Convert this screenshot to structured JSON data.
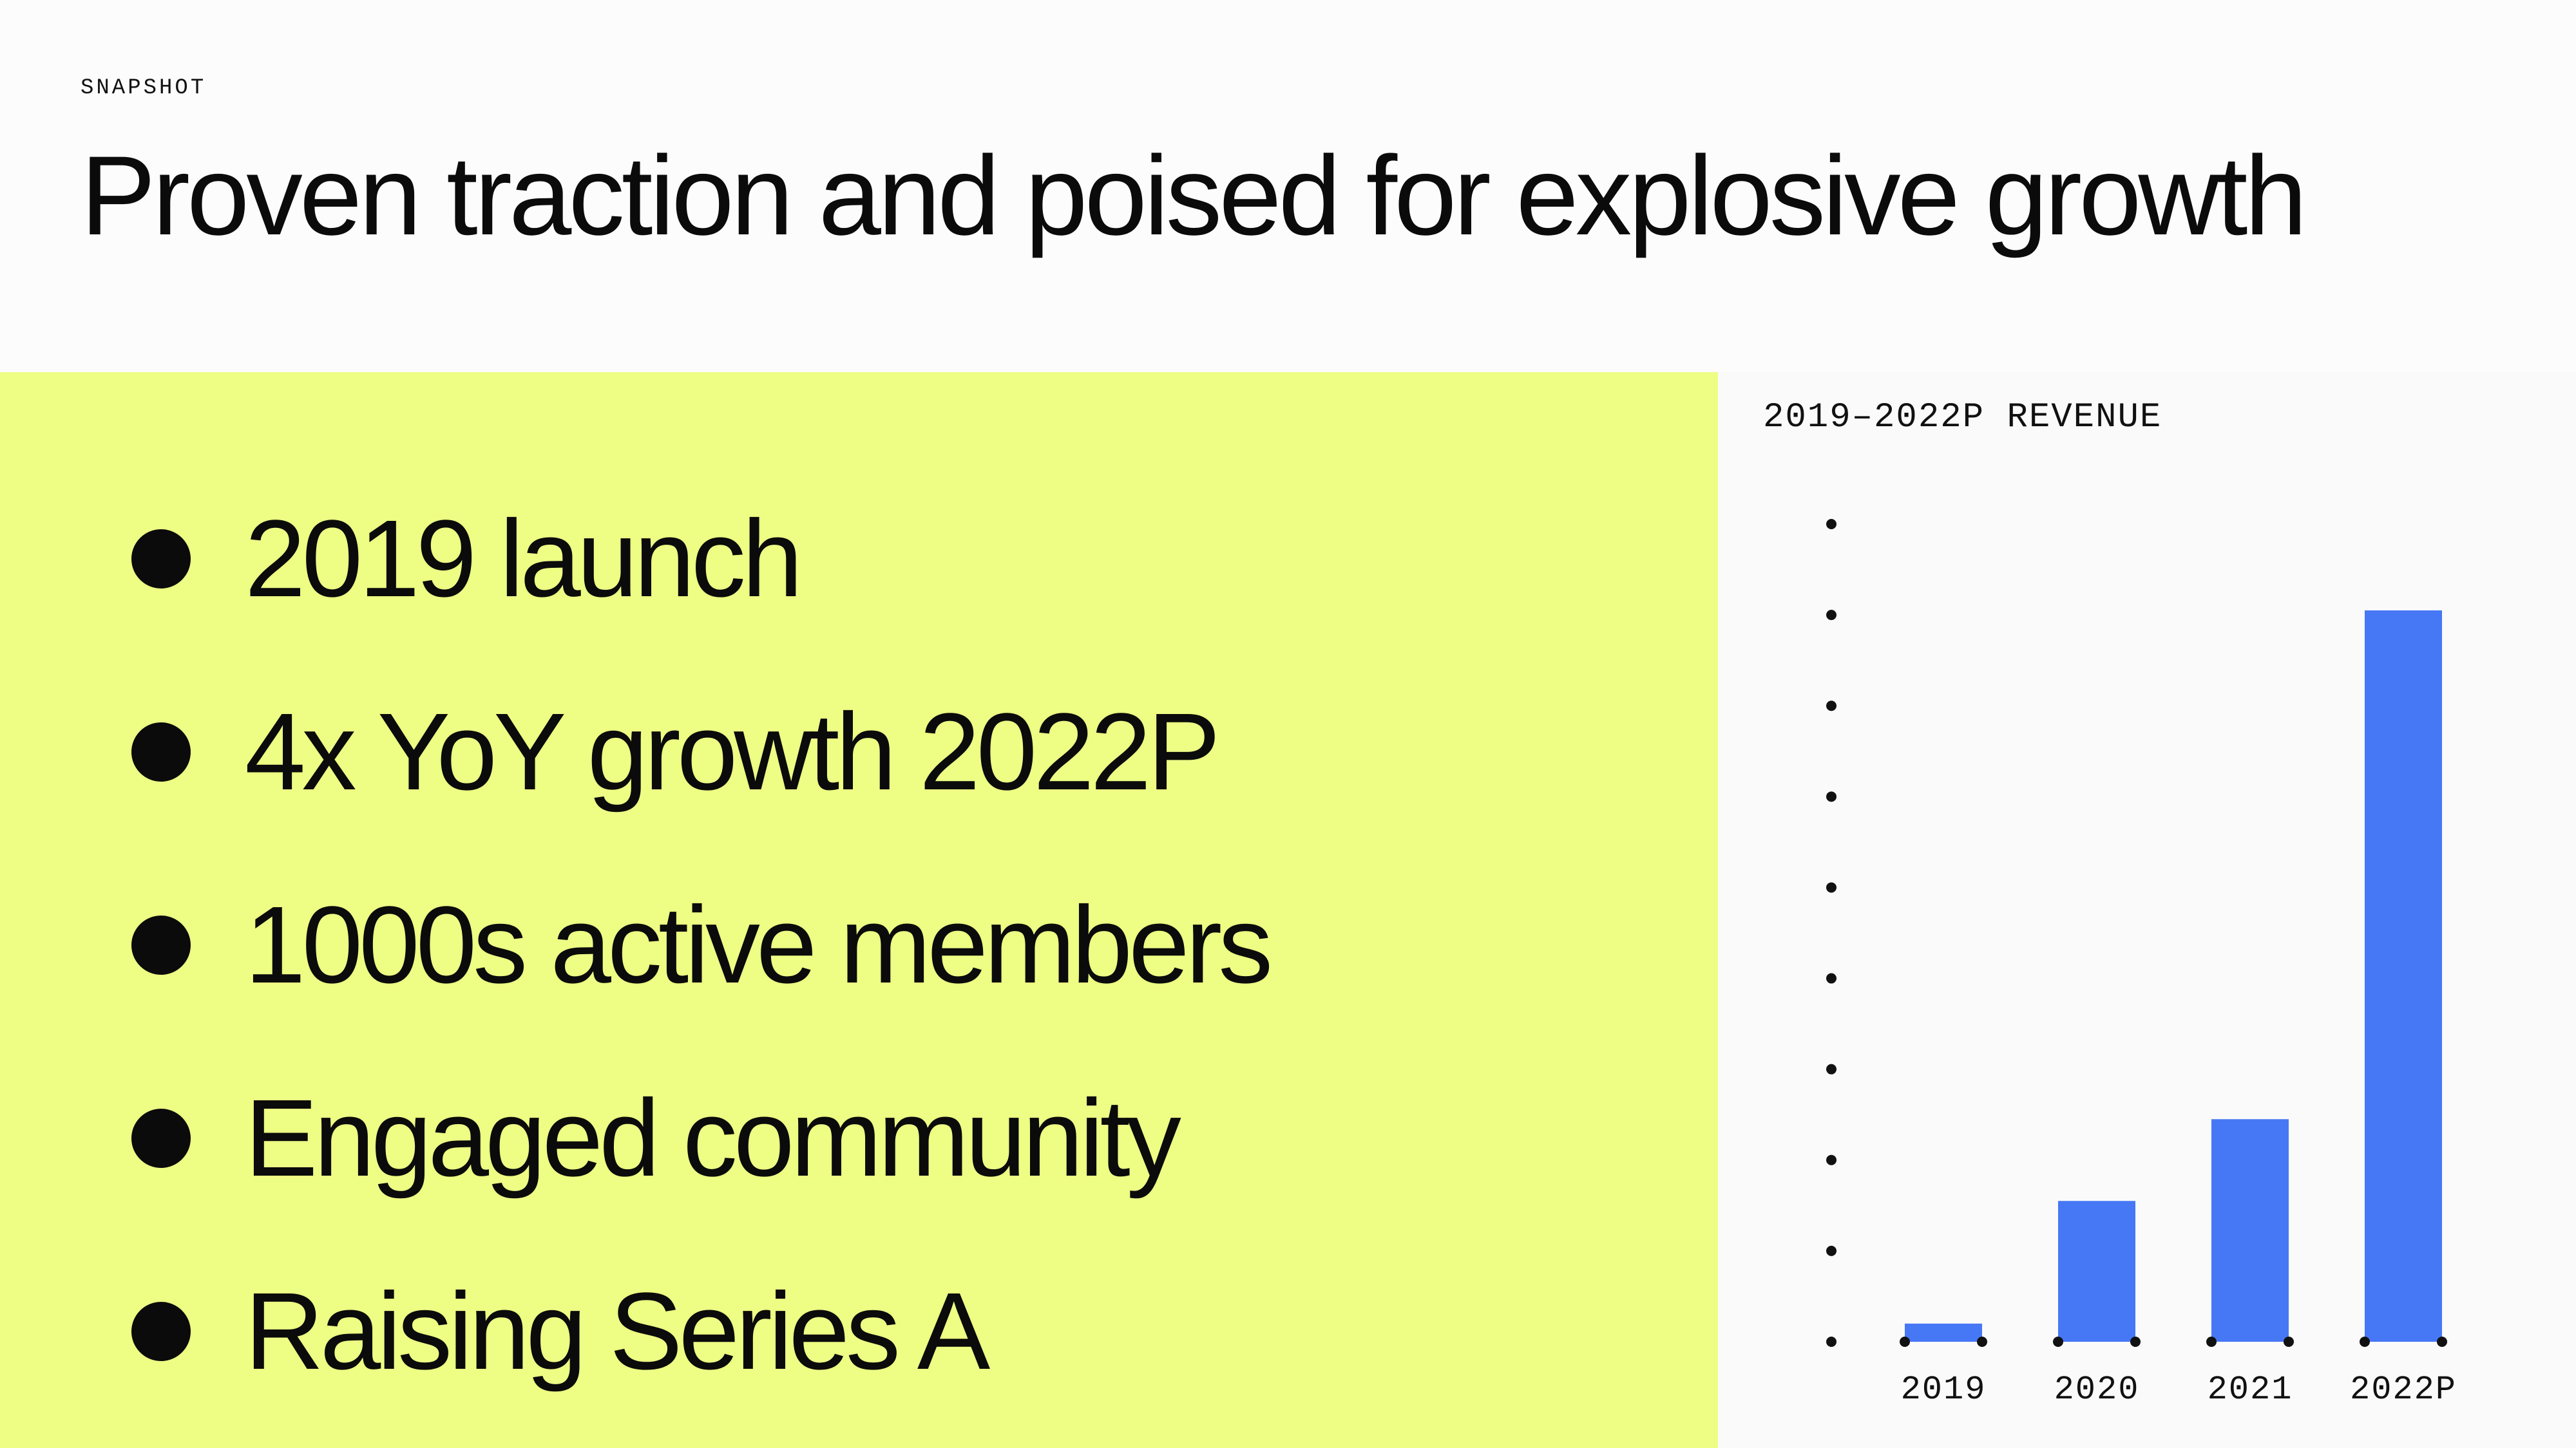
{
  "header": {
    "eyebrow": "SNAPSHOT",
    "title": "Proven traction and poised for explosive growth"
  },
  "highlights": {
    "items": [
      "2019 launch",
      "4x YoY growth 2022P",
      "1000s active members",
      "Engaged community",
      "Raising Series A"
    ]
  },
  "colors": {
    "highlight_panel": "#eefd84",
    "bar": "#4677f5",
    "text": "#0b0b0b",
    "background": "#fcfcfc"
  },
  "chart_data": {
    "type": "bar",
    "title": "2019–2022P REVENUE",
    "categories": [
      "2019",
      "2020",
      "2021",
      "2022P"
    ],
    "values": [
      2,
      15.5,
      24.5,
      80.5
    ],
    "xlabel": "",
    "ylabel": "",
    "ylim": [
      0,
      90
    ],
    "y_ticks": [
      0,
      10,
      20,
      30,
      40,
      50,
      60,
      70,
      80,
      90
    ],
    "y_tick_labels_shown": false,
    "grid": false,
    "legend": "none"
  }
}
